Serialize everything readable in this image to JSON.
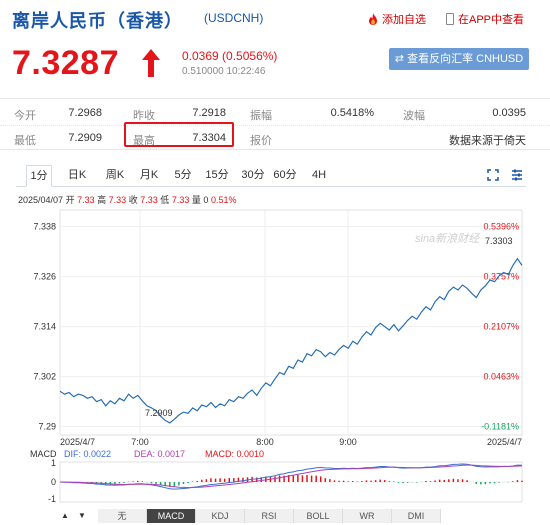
{
  "header": {
    "title": "离岸人民币（香港）",
    "code": "(USDCNH)",
    "add_fav": "添加自选",
    "view_in_app": "在APP中查看"
  },
  "quote": {
    "price": "7.3287",
    "change": "0.0369 (0.5056%)",
    "sub": "0.510000 10:22:46",
    "reverse_label": "⇄ 查看反向汇率 CNHUSD"
  },
  "stats": {
    "open_label": "今开",
    "open": "7.2968",
    "prev_label": "昨收",
    "prev": "7.2918",
    "amp_label": "振幅",
    "amp": "0.5418%",
    "wave_label": "波幅",
    "wave": "0.0395",
    "low_label": "最低",
    "low": "7.2909",
    "high_label": "最高",
    "high": "7.3304",
    "quote_label": "报价",
    "quote": "",
    "source": "数据来源于倚天"
  },
  "tabs": [
    "1分",
    "日K",
    "周K",
    "月K",
    "5分",
    "15分",
    "30分",
    "60分",
    "4H"
  ],
  "ohlc": {
    "date": "2025/04/07",
    "open_label": "开",
    "open": "7.33",
    "high_label": "高",
    "high": "7.33",
    "close_label": "收",
    "close": "7.33",
    "low_label": "低",
    "low": "7.33",
    "vol_label": "量",
    "vol": "0",
    "pct": "0.51%"
  },
  "indicator": {
    "name": "MACD",
    "dif": "DIF: 0.0022",
    "dea": "DEA: 0.0017",
    "macd": "MACD: 0.0010",
    "tabs": [
      "无",
      "MACD",
      "KDJ",
      "RSI",
      "BOLL",
      "WR",
      "DMI"
    ]
  },
  "chart_data": {
    "type": "line",
    "y_ticks": [
      "7.338",
      "7.326",
      "7.314",
      "7.302",
      "7.29"
    ],
    "pct_ticks": [
      "0.5396%",
      "0.3757%",
      "0.2107%",
      "0.0463%",
      "-0.1181%"
    ],
    "x_ticks": [
      "2025/4/7",
      "7:00",
      "8:00",
      "9:00",
      "2025/4/7"
    ],
    "y_range": [
      7.288,
      7.342
    ],
    "annotations": {
      "high": "7.3303",
      "low": "7.2909"
    },
    "watermark": "sina新浪财经",
    "macd_ticks": [
      "1",
      "0",
      "-1"
    ],
    "colors": {
      "price_line": "#2a6fb3",
      "dif": "#3a6ed0",
      "dea": "#b040b0",
      "up": "#e4151a",
      "down": "#1aa260"
    },
    "series": [
      {
        "values": [
          7.2985,
          7.2978,
          7.2982,
          7.2972,
          7.2978,
          7.2975,
          7.2968,
          7.2972,
          7.296,
          7.2965,
          7.295,
          7.2962,
          7.2955,
          7.2968,
          7.2962,
          7.2978,
          7.2968,
          7.2975,
          7.2962,
          7.295,
          7.2945,
          7.2938,
          7.2925,
          7.2915,
          7.2909,
          7.2918,
          7.2928,
          7.2935,
          7.2932,
          7.2945,
          7.2938,
          7.2952,
          7.2948,
          7.2958,
          7.2946,
          7.2955,
          7.295,
          7.2965,
          7.296,
          7.2972,
          7.2968,
          7.298,
          7.2988,
          7.2975,
          7.2992,
          7.3005,
          7.2998,
          7.3015,
          7.303,
          7.3025,
          7.3045,
          7.304,
          7.306,
          7.3055,
          7.3075,
          7.307,
          7.3085,
          7.308,
          7.3068,
          7.3078,
          7.3072,
          7.3085,
          7.3095,
          7.3088,
          7.3105,
          7.3098,
          7.3115,
          7.3128,
          7.312,
          7.3138,
          7.3148,
          7.314,
          7.3132,
          7.3145,
          7.313,
          7.3142,
          7.3155,
          7.3165,
          7.3158,
          7.3175,
          7.3188,
          7.318,
          7.32,
          7.3212,
          7.3205,
          7.3225,
          7.3235,
          7.3228,
          7.324,
          7.3232,
          7.322,
          7.321,
          7.3228,
          7.3238,
          7.3252,
          7.3248,
          7.3262,
          7.327,
          7.3265,
          7.3287,
          7.3303,
          7.3287
        ]
      }
    ]
  }
}
